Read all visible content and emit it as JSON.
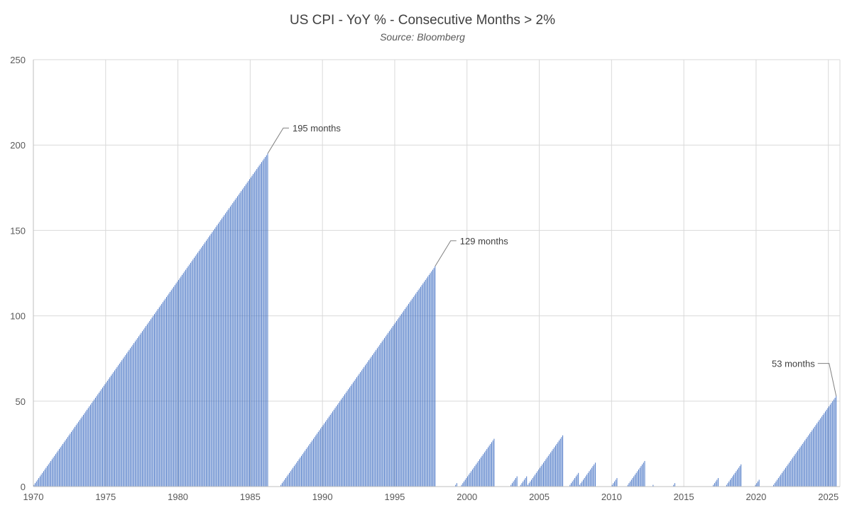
{
  "chart_data": {
    "type": "bar",
    "title": "US CPI - YoY % - Consecutive Months > 2%",
    "subtitle": "Source: Bloomberg",
    "xlabel": "",
    "ylabel": "",
    "xlim": [
      1970,
      2025.8
    ],
    "ylim": [
      0,
      250
    ],
    "y_ticks": [
      0,
      50,
      100,
      150,
      200,
      250
    ],
    "x_ticks": [
      "1970",
      "1975",
      "1980",
      "1985",
      "1990",
      "1995",
      "2000",
      "2005",
      "2010",
      "2015",
      "2020",
      "2025"
    ],
    "grid": true,
    "bar_color": "#4472C4",
    "series": [
      {
        "description": "Consecutive months with YoY CPI above 2%; each run counts up 1 per month",
        "runs": [
          {
            "start": "1970-01",
            "months": 195
          },
          {
            "start": "1987-02",
            "months": 129
          },
          {
            "start": "1999-03",
            "months": 2
          },
          {
            "start": "1999-08",
            "months": 28
          },
          {
            "start": "2003-01",
            "months": 6
          },
          {
            "start": "2003-09",
            "months": 6
          },
          {
            "start": "2004-03",
            "months": 30
          },
          {
            "start": "2007-02",
            "months": 8
          },
          {
            "start": "2007-10",
            "months": 14
          },
          {
            "start": "2010-01",
            "months": 5
          },
          {
            "start": "2011-02",
            "months": 15
          },
          {
            "start": "2012-11",
            "months": 1
          },
          {
            "start": "2014-04",
            "months": 2
          },
          {
            "start": "2017-01",
            "months": 5
          },
          {
            "start": "2017-12",
            "months": 13
          },
          {
            "start": "2019-12",
            "months": 4
          },
          {
            "start": "2021-03",
            "months": 53
          }
        ]
      }
    ],
    "annotations": [
      {
        "text": "195 months",
        "x": "1986-03",
        "y": 195
      },
      {
        "text": "129 months",
        "x": "1997-10",
        "y": 129
      },
      {
        "text": "53 months",
        "x": "2025-07",
        "y": 53
      }
    ]
  }
}
